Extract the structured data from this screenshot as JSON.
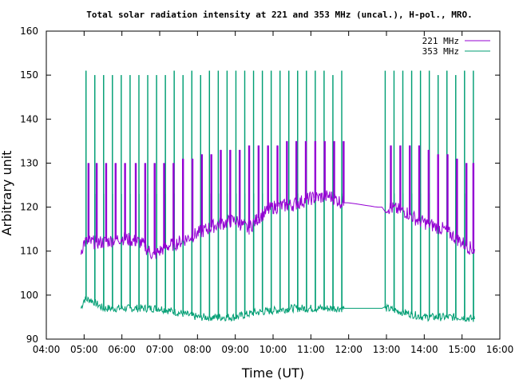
{
  "chart_data": {
    "type": "line",
    "title": "Total solar radiation intensity at 221 and 353 MHz (uncal.), H-pol., MRO.",
    "xlabel": "Time (UT)",
    "ylabel": "Arbitrary unit",
    "xlim": [
      "04:00",
      "16:00"
    ],
    "ylim": [
      90,
      160
    ],
    "x_ticks": [
      "04:00",
      "05:00",
      "06:00",
      "07:00",
      "08:00",
      "09:00",
      "10:00",
      "11:00",
      "12:00",
      "13:00",
      "14:00",
      "15:00",
      "16:00"
    ],
    "y_ticks": [
      90,
      100,
      110,
      120,
      130,
      140,
      150,
      160
    ],
    "grid": false,
    "legend": "top-right",
    "series": [
      {
        "name": "221 MHz",
        "color": "#9400d3",
        "baseline": [
          [
            "04:55",
            110
          ],
          [
            "05:00",
            112
          ],
          [
            "05:30",
            112
          ],
          [
            "06:00",
            113
          ],
          [
            "06:30",
            112
          ],
          [
            "06:50",
            109
          ],
          [
            "07:10",
            111
          ],
          [
            "07:30",
            112
          ],
          [
            "08:00",
            114
          ],
          [
            "08:30",
            116
          ],
          [
            "09:00",
            117
          ],
          [
            "09:20",
            115
          ],
          [
            "09:40",
            118
          ],
          [
            "10:00",
            120
          ],
          [
            "10:30",
            120.5
          ],
          [
            "11:00",
            122
          ],
          [
            "11:30",
            122.5
          ],
          [
            "11:50",
            121
          ],
          [
            "12:00",
            121
          ],
          [
            "12:45",
            120
          ],
          [
            "13:00",
            120
          ],
          [
            "13:30",
            119
          ],
          [
            "13:50",
            117
          ],
          [
            "14:10",
            116
          ],
          [
            "14:30",
            115
          ],
          [
            "15:00",
            112
          ],
          [
            "15:20",
            110
          ]
        ],
        "calibration_peaks": [
          [
            "05:07",
            130
          ],
          [
            "05:20",
            130
          ],
          [
            "05:35",
            130
          ],
          [
            "05:50",
            130
          ],
          [
            "06:05",
            130
          ],
          [
            "06:22",
            130
          ],
          [
            "06:37",
            130
          ],
          [
            "06:52",
            130
          ],
          [
            "07:07",
            130
          ],
          [
            "07:22",
            130
          ],
          [
            "07:37",
            131
          ],
          [
            "07:52",
            131
          ],
          [
            "08:07",
            132
          ],
          [
            "08:22",
            132
          ],
          [
            "08:37",
            133
          ],
          [
            "08:52",
            133
          ],
          [
            "09:07",
            133
          ],
          [
            "09:22",
            134
          ],
          [
            "09:37",
            134
          ],
          [
            "09:52",
            134
          ],
          [
            "10:07",
            134
          ],
          [
            "10:22",
            135
          ],
          [
            "10:37",
            135
          ],
          [
            "10:52",
            135
          ],
          [
            "11:07",
            135
          ],
          [
            "11:22",
            135
          ],
          [
            "11:37",
            135
          ],
          [
            "11:52",
            135
          ],
          [
            "13:07",
            134
          ],
          [
            "13:22",
            134
          ],
          [
            "13:37",
            134
          ],
          [
            "13:52",
            134
          ],
          [
            "14:07",
            133
          ],
          [
            "14:22",
            132
          ],
          [
            "14:37",
            132
          ],
          [
            "14:52",
            131
          ],
          [
            "15:07",
            130
          ],
          [
            "15:18",
            130
          ]
        ]
      },
      {
        "name": "353 MHz",
        "color": "#009e73",
        "baseline": [
          [
            "04:55",
            97
          ],
          [
            "05:00",
            99
          ],
          [
            "05:10",
            99
          ],
          [
            "05:30",
            97
          ],
          [
            "06:00",
            97
          ],
          [
            "06:30",
            97
          ],
          [
            "07:00",
            97
          ],
          [
            "07:30",
            96
          ],
          [
            "08:00",
            95
          ],
          [
            "08:30",
            95
          ],
          [
            "09:00",
            95
          ],
          [
            "09:30",
            96
          ],
          [
            "10:00",
            96.5
          ],
          [
            "10:30",
            97
          ],
          [
            "11:00",
            97
          ],
          [
            "11:30",
            97
          ],
          [
            "11:50",
            97
          ],
          [
            "12:00",
            97
          ],
          [
            "12:45",
            97
          ],
          [
            "13:00",
            97
          ],
          [
            "13:30",
            96
          ],
          [
            "14:00",
            95
          ],
          [
            "14:30",
            95
          ],
          [
            "15:00",
            95
          ],
          [
            "15:20",
            94.5
          ]
        ],
        "calibration_peaks": [
          [
            "05:03",
            151
          ],
          [
            "05:17",
            150
          ],
          [
            "05:31",
            150
          ],
          [
            "05:45",
            150
          ],
          [
            "05:59",
            150
          ],
          [
            "06:13",
            150
          ],
          [
            "06:27",
            150
          ],
          [
            "06:41",
            150
          ],
          [
            "06:55",
            150
          ],
          [
            "07:09",
            150
          ],
          [
            "07:23",
            151
          ],
          [
            "07:37",
            150
          ],
          [
            "07:51",
            151
          ],
          [
            "08:05",
            150
          ],
          [
            "08:19",
            151
          ],
          [
            "08:33",
            151
          ],
          [
            "08:47",
            151
          ],
          [
            "09:01",
            151
          ],
          [
            "09:15",
            151
          ],
          [
            "09:29",
            151
          ],
          [
            "09:43",
            151
          ],
          [
            "09:57",
            151
          ],
          [
            "10:11",
            151
          ],
          [
            "10:25",
            151
          ],
          [
            "10:39",
            151
          ],
          [
            "10:53",
            151
          ],
          [
            "11:07",
            151
          ],
          [
            "11:21",
            151
          ],
          [
            "11:35",
            150
          ],
          [
            "11:49",
            151
          ],
          [
            "12:58",
            151
          ],
          [
            "13:12",
            151
          ],
          [
            "13:26",
            151
          ],
          [
            "13:40",
            151
          ],
          [
            "13:54",
            151
          ],
          [
            "14:08",
            151
          ],
          [
            "14:22",
            150
          ],
          [
            "14:36",
            151
          ],
          [
            "14:50",
            150
          ],
          [
            "15:04",
            151
          ],
          [
            "15:18",
            151
          ]
        ]
      }
    ]
  }
}
